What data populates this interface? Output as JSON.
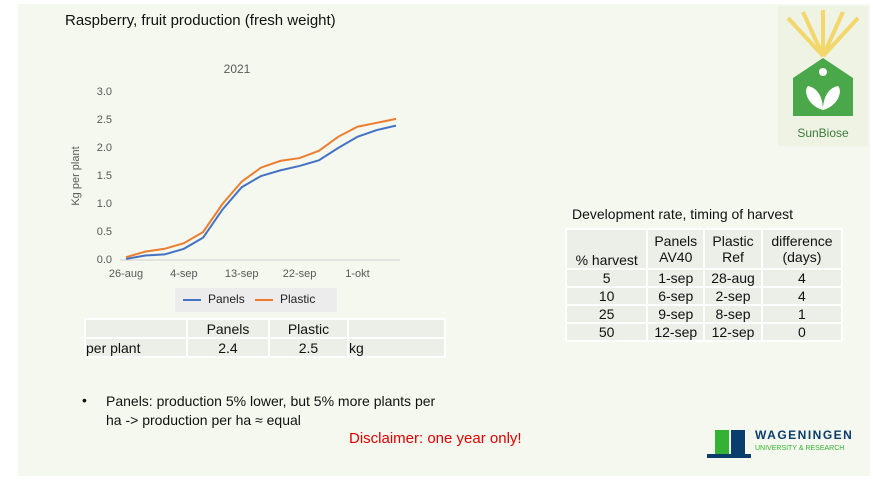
{
  "title": "Raspberry, fruit production (fresh weight)",
  "chart_data": {
    "type": "line",
    "title": "2021",
    "y_label": "Kg per plant",
    "categories": [
      "26-aug",
      null,
      null,
      "4-sep",
      null,
      null,
      "13-sep",
      null,
      null,
      "22-sep",
      null,
      null,
      "1-okt",
      null,
      null
    ],
    "series": [
      {
        "name": "Panels",
        "color": "#4472c4",
        "values": [
          0.02,
          0.08,
          0.1,
          0.2,
          0.4,
          0.9,
          1.3,
          1.5,
          1.6,
          1.68,
          1.78,
          2.0,
          2.2,
          2.32,
          2.4
        ]
      },
      {
        "name": "Plastic",
        "color": "#ed7d31",
        "values": [
          0.05,
          0.15,
          0.2,
          0.3,
          0.5,
          1.0,
          1.4,
          1.65,
          1.77,
          1.82,
          1.95,
          2.2,
          2.38,
          2.45,
          2.52
        ]
      }
    ],
    "ylim": [
      0,
      3
    ],
    "yticks": [
      {
        "value": 0,
        "label": "0.0"
      },
      {
        "value": 0.5,
        "label": "0.5"
      },
      {
        "value": 1,
        "label": "1.0"
      },
      {
        "value": 1.5,
        "label": "1.5"
      },
      {
        "value": 2,
        "label": "2.0"
      },
      {
        "value": 2.5,
        "label": "2.5"
      },
      {
        "value": 3,
        "label": "3.0"
      }
    ],
    "grid": false,
    "legend": "bottom"
  },
  "summary_table": {
    "columns": [
      "Panels",
      "Plastic"
    ],
    "rows": [
      {
        "label": "per plant",
        "values": [
          "2.4",
          "2.5"
        ],
        "unit": "kg"
      }
    ]
  },
  "harvest_table": {
    "title": "Development rate, timing of harvest",
    "header": [
      "% harvest",
      "Panels\nAV40",
      "Plastic\nRef",
      "difference\n(days)"
    ],
    "rows": [
      [
        "5",
        "1-sep",
        "28-aug",
        "4"
      ],
      [
        "10",
        "6-sep",
        "2-sep",
        "4"
      ],
      [
        "25",
        "9-sep",
        "8-sep",
        "1"
      ],
      [
        "50",
        "12-sep",
        "12-sep",
        "0"
      ]
    ]
  },
  "bullet": "Panels: production 5% lower, but 5% more plants per ha -> production per ha ≈ equal",
  "disclaimer": "Disclaimer: one year only!",
  "logos": {
    "sunbiose": "SunBiose",
    "wur_name": "WAGENINGEN",
    "wur_sub": "UNIVERSITY & RESEARCH"
  }
}
